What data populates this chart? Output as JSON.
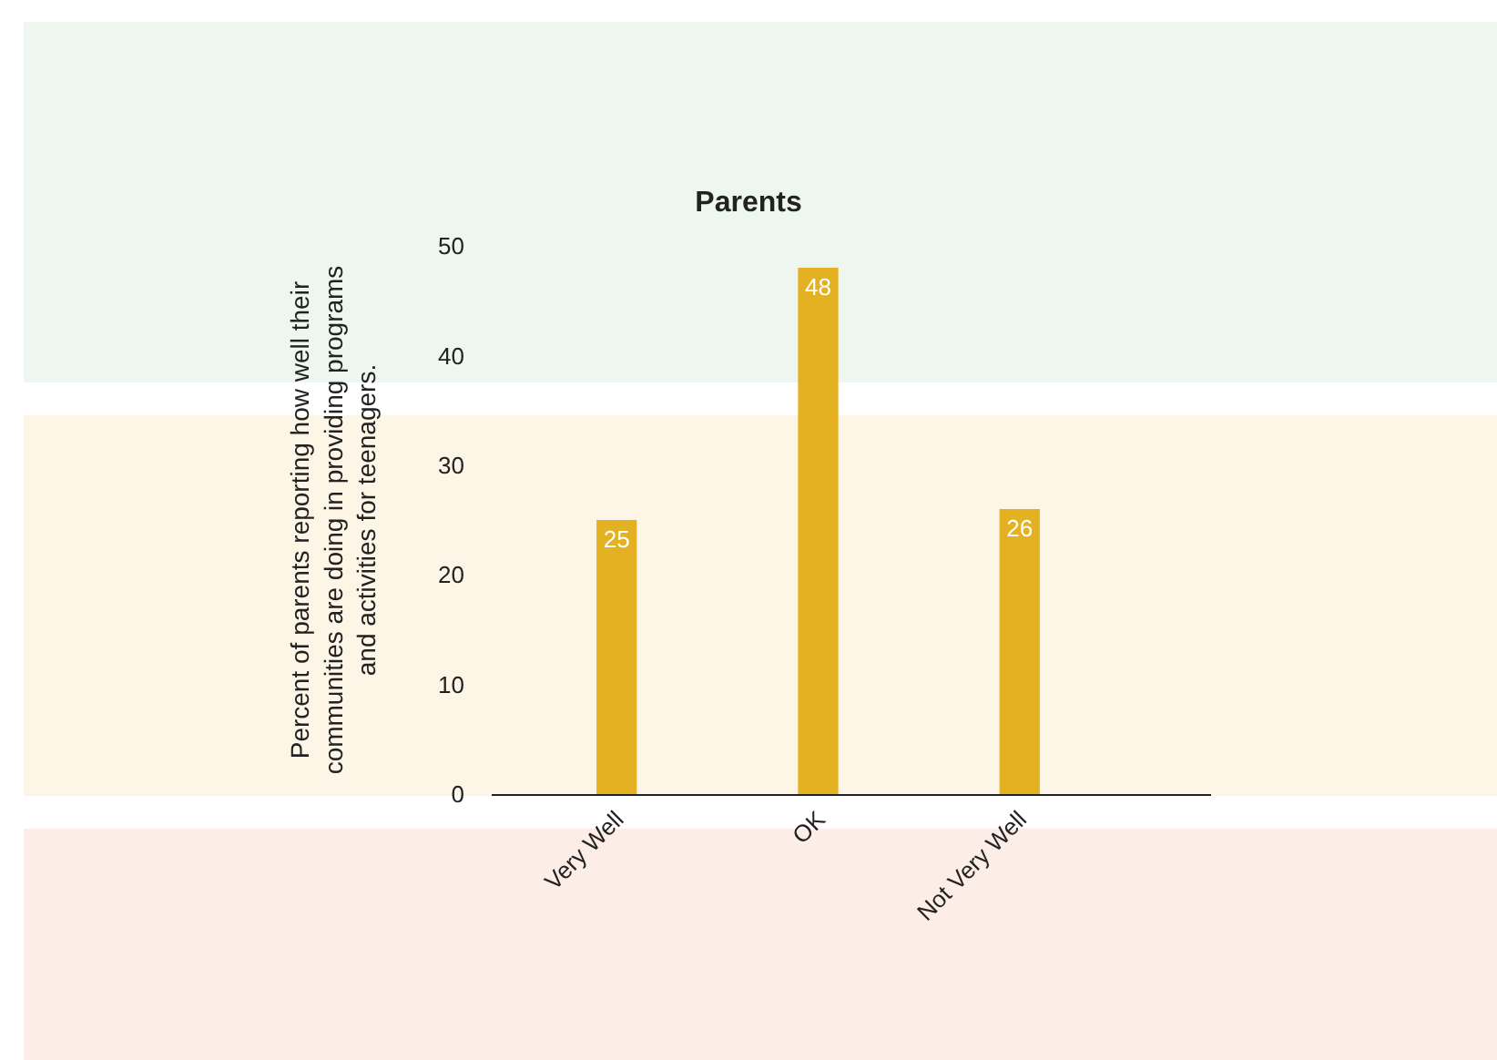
{
  "chart_data": {
    "type": "bar",
    "title": "Parents",
    "ylabel": "Percent of parents reporting how well their\ncommunities are doing in providing programs\nand activities for teenagers.",
    "categories": [
      "Very Well",
      "OK",
      "Not Very Well"
    ],
    "values": [
      25,
      48,
      26
    ],
    "color": "#e3b122",
    "ylim": [
      0,
      50
    ],
    "yticks": [
      0,
      10,
      20,
      30,
      40,
      50
    ],
    "grid": false,
    "data_labels": true
  }
}
